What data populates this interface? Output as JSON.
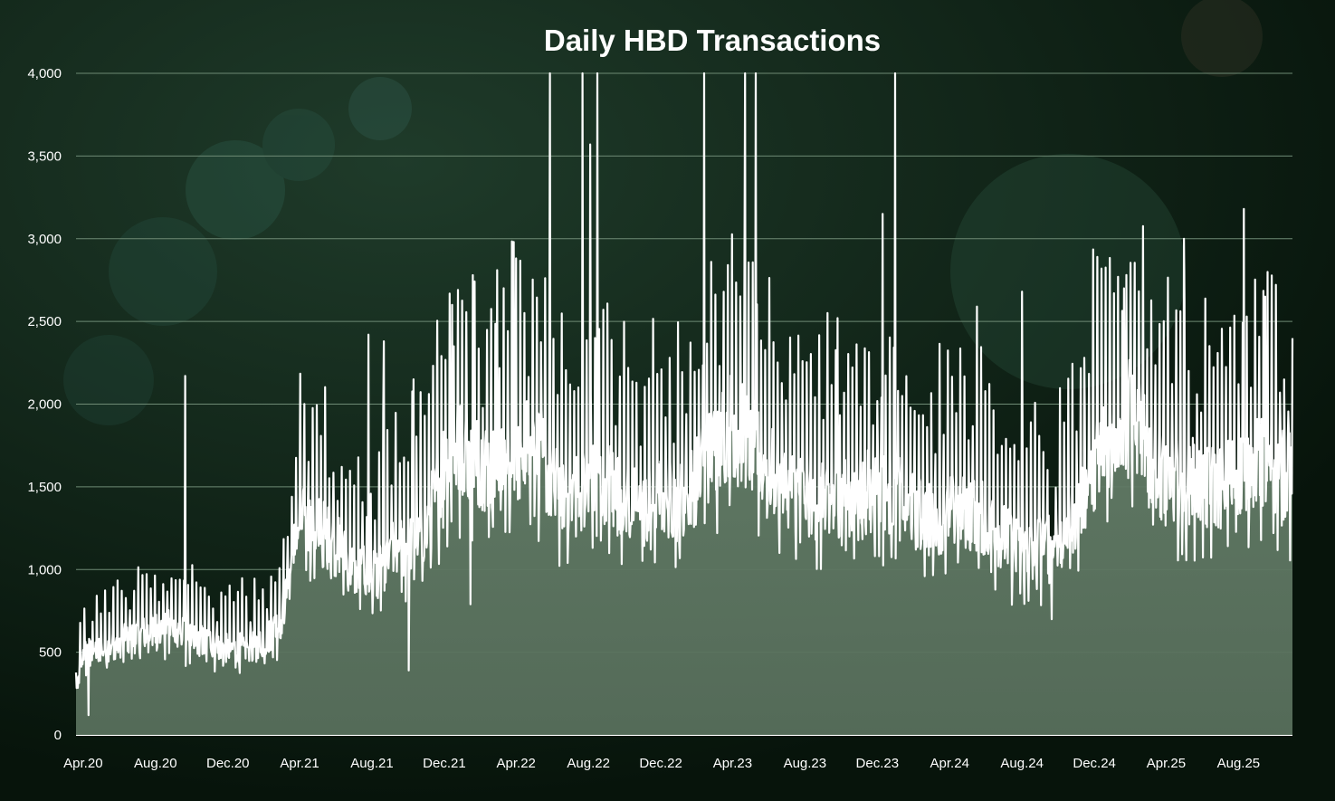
{
  "chart_data": {
    "type": "area",
    "title": "Daily HBD Transactions",
    "xlabel": "",
    "ylabel": "",
    "x_ticks": [
      "Apr.20",
      "Aug.20",
      "Dec.20",
      "Apr.21",
      "Aug.21",
      "Dec.21",
      "Apr.22",
      "Aug.22",
      "Dec.22",
      "Apr.23",
      "Aug.23",
      "Dec.23",
      "Apr.24",
      "Aug.24",
      "Dec.24",
      "Apr.25",
      "Aug.25"
    ],
    "x_range": [
      "2020-03-20",
      "2025-10-31"
    ],
    "y_ticks": [
      0,
      500,
      1000,
      1500,
      2000,
      2500,
      3000,
      3500,
      4000
    ],
    "y_tick_labels": [
      "0",
      "500",
      "1,000",
      "1,500",
      "2,000",
      "2,500",
      "3,000",
      "3,500",
      "4,000"
    ],
    "ylim": [
      0,
      4000
    ],
    "grid": true,
    "legend": "none",
    "colors": {
      "line": "#ffffff",
      "fill": "#5f7a64",
      "grid": "#6e8a74",
      "background": "#0b1a10"
    },
    "series": [
      {
        "x": [
          "2020-03-20",
          "2020-04-01",
          "2020-05-01",
          "2020-06-01",
          "2020-07-01",
          "2020-08-01",
          "2020-09-01",
          "2020-10-01",
          "2020-11-01",
          "2020-12-01",
          "2021-01-01",
          "2021-02-01",
          "2021-03-01",
          "2021-04-01",
          "2021-05-01",
          "2021-06-01",
          "2021-07-01",
          "2021-08-01",
          "2021-09-01",
          "2021-10-01",
          "2021-11-01",
          "2021-12-01",
          "2022-01-01",
          "2022-02-01",
          "2022-03-01",
          "2022-04-01",
          "2022-05-01",
          "2022-06-01",
          "2022-07-01",
          "2022-08-01",
          "2022-09-01",
          "2022-10-01",
          "2022-11-01",
          "2022-12-01",
          "2023-01-01",
          "2023-02-01",
          "2023-03-01",
          "2023-04-01",
          "2023-05-01",
          "2023-06-01",
          "2023-07-01",
          "2023-08-01",
          "2023-09-01",
          "2023-10-01",
          "2023-11-01",
          "2023-12-01",
          "2024-01-01",
          "2024-02-01",
          "2024-03-01",
          "2024-04-01",
          "2024-05-01",
          "2024-06-01",
          "2024-07-01",
          "2024-08-01",
          "2024-09-01",
          "2024-10-01",
          "2024-11-01",
          "2024-12-01",
          "2025-01-01",
          "2025-02-01",
          "2025-03-01",
          "2025-04-01",
          "2025-05-01",
          "2025-06-01",
          "2025-07-01",
          "2025-08-01",
          "2025-09-01",
          "2025-10-01",
          "2025-10-31"
        ],
        "values": [
          250,
          500,
          520,
          560,
          600,
          640,
          650,
          580,
          560,
          520,
          530,
          560,
          700,
          1300,
          1250,
          1150,
          1000,
          950,
          1100,
          1150,
          1250,
          1650,
          1750,
          1650,
          1600,
          1700,
          1800,
          1500,
          1450,
          1500,
          1550,
          1450,
          1350,
          1450,
          1400,
          1550,
          1750,
          1900,
          1750,
          1600,
          1500,
          1450,
          1400,
          1450,
          1450,
          1500,
          1450,
          1350,
          1300,
          1350,
          1350,
          1300,
          1200,
          1100,
          1150,
          1200,
          1350,
          1650,
          1850,
          1950,
          1700,
          1550,
          1500,
          1500,
          1500,
          1600,
          1650,
          1600,
          1550
        ]
      }
    ],
    "spikes": [
      {
        "x": "2020-09-20",
        "y": 2170
      },
      {
        "x": "2021-07-26",
        "y": 2420
      },
      {
        "x": "2021-08-21",
        "y": 2380
      },
      {
        "x": "2021-10-10",
        "y": 2150
      },
      {
        "x": "2021-12-14",
        "y": 2600
      },
      {
        "x": "2022-01-18",
        "y": 2780
      },
      {
        "x": "2022-02-28",
        "y": 2810
      },
      {
        "x": "2022-03-28",
        "y": 2980
      },
      {
        "x": "2022-05-28",
        "y": 4000
      },
      {
        "x": "2022-07-22",
        "y": 4000
      },
      {
        "x": "2022-08-04",
        "y": 3570
      },
      {
        "x": "2022-08-16",
        "y": 4000
      },
      {
        "x": "2023-02-12",
        "y": 4000
      },
      {
        "x": "2023-02-24",
        "y": 2860
      },
      {
        "x": "2023-04-22",
        "y": 4000
      },
      {
        "x": "2023-05-10",
        "y": 4000
      },
      {
        "x": "2023-09-25",
        "y": 2520
      },
      {
        "x": "2023-12-10",
        "y": 3150
      },
      {
        "x": "2023-12-31",
        "y": 4000
      },
      {
        "x": "2024-05-17",
        "y": 2590
      },
      {
        "x": "2024-08-01",
        "y": 2680
      },
      {
        "x": "2024-11-14",
        "y": 2280
      },
      {
        "x": "2025-01-20",
        "y": 2700
      },
      {
        "x": "2025-05-01",
        "y": 3000
      },
      {
        "x": "2025-08-10",
        "y": 3180
      },
      {
        "x": "2025-09-15",
        "y": 2650
      }
    ],
    "dips": [
      {
        "x": "2020-04-10",
        "y": 120
      },
      {
        "x": "2021-10-02",
        "y": 390
      },
      {
        "x": "2022-01-14",
        "y": 790
      },
      {
        "x": "2024-09-20",
        "y": 700
      }
    ]
  }
}
